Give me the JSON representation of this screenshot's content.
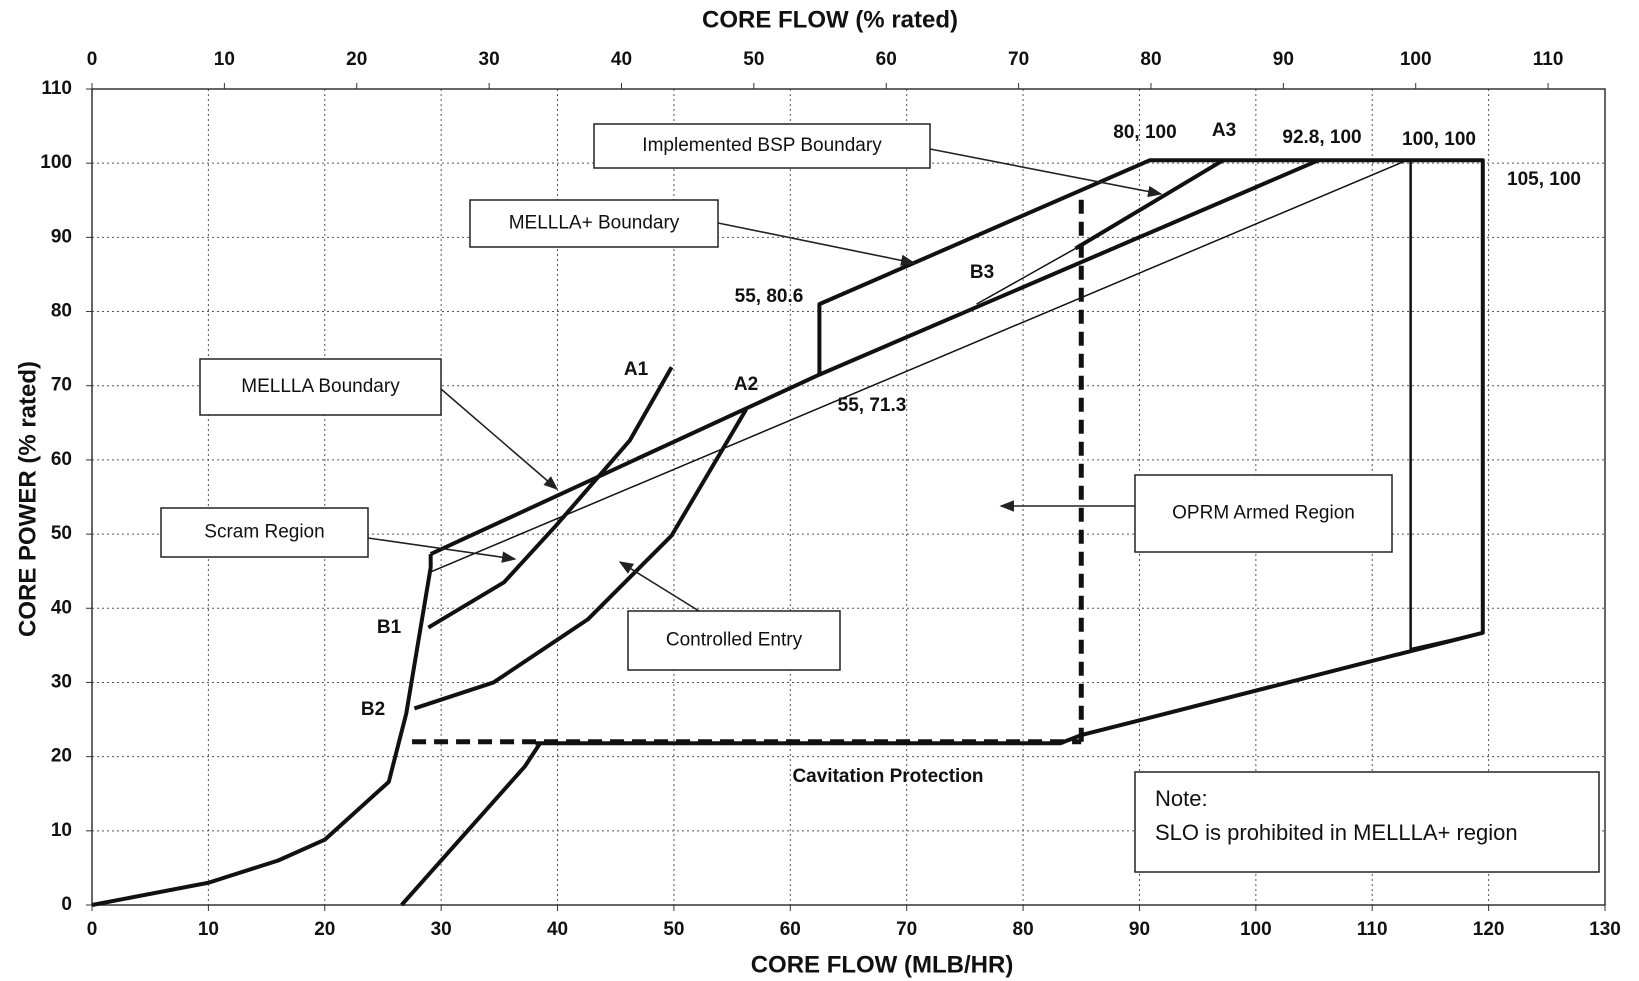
{
  "chart_data": {
    "type": "line",
    "xlabel": "CORE FLOW (MLB/HR)",
    "x2label": "CORE FLOW (% rated)",
    "ylabel": "CORE POWER (% rated)",
    "xlim": [
      0,
      130
    ],
    "xticks": [
      0,
      10,
      20,
      30,
      40,
      50,
      60,
      70,
      80,
      90,
      100,
      110,
      120,
      130
    ],
    "x2lim": [
      0,
      114.3
    ],
    "x2ticks": [
      0,
      10,
      20,
      30,
      40,
      50,
      60,
      70,
      80,
      90,
      100,
      110
    ],
    "ylim": [
      0,
      110
    ],
    "yticks": [
      0,
      10,
      20,
      30,
      40,
      50,
      60,
      70,
      80,
      90,
      100,
      110
    ],
    "grid": true,
    "color": "#111111",
    "lines": [
      {
        "line_style": "thick",
        "x": [
          29.1,
          62.5,
          62.5,
          90.9,
          119.5,
          119.5,
          85,
          83.2,
          38.1
        ],
        "y": [
          47.3,
          71.5,
          81,
          100.4,
          100.4,
          36.7,
          22.9,
          21.8,
          21.8
        ]
      },
      {
        "line_style": "thick",
        "x": [
          62.5,
          105.4
        ],
        "y": [
          71.5,
          100.4
        ]
      },
      {
        "line_style": "thin",
        "x": [
          29.1,
          113
        ],
        "y": [
          44.9,
          100.4
        ]
      },
      {
        "line_style": "medium",
        "x": [
          113.3,
          113.3,
          119.5
        ],
        "y": [
          100.4,
          34.5,
          36.7
        ]
      },
      {
        "line_style": "thick",
        "x": [
          97.2,
          84.5
        ],
        "y": [
          100.4,
          88.5
        ]
      },
      {
        "line_style": "thin",
        "x": [
          84.5,
          76
        ],
        "y": [
          88.5,
          81
        ]
      },
      {
        "line_style": "thick",
        "x": [
          0,
          10,
          16,
          20,
          25.5,
          27,
          29.1,
          29.1
        ],
        "y": [
          0,
          3,
          6,
          8.8,
          16.6,
          25.8,
          45.5,
          47.3
        ]
      },
      {
        "line_style": "thick",
        "x": [
          26.6,
          37.2,
          38.5
        ],
        "y": [
          0,
          18.7,
          21.8
        ]
      },
      {
        "line_style": "thick",
        "x": [
          28.9,
          35.4,
          39.9,
          46.2,
          49.8
        ],
        "y": [
          37.4,
          43.5,
          51.2,
          62.6,
          72.5
        ]
      },
      {
        "line_style": "thick",
        "x": [
          27.7,
          34.5,
          42.6,
          49.8,
          56.2
        ],
        "y": [
          26.5,
          30,
          38.5,
          49.8,
          66.8
        ]
      },
      {
        "line_style": "dashed",
        "x": [
          27.5,
          85
        ],
        "y": [
          22,
          22
        ]
      },
      {
        "line_style": "dashed",
        "x": [
          85,
          85
        ],
        "y": [
          22,
          96
        ]
      }
    ],
    "annotations": [
      "80, 100",
      "A3",
      "92.8, 100",
      "100, 100",
      "105, 100",
      "B3",
      "55, 80.6",
      "A1",
      "A2",
      "55, 71.3",
      "B1",
      "B2",
      "Cavitation Protection"
    ],
    "boxes": [
      "Implemented BSP Boundary",
      "MELLLA+ Boundary",
      "MELLLA Boundary",
      "Scram Region",
      "Controlled Entry",
      "OPRM Armed Region"
    ],
    "note": [
      "Note:",
      "SLO is prohibited in MELLLA+ region"
    ]
  }
}
